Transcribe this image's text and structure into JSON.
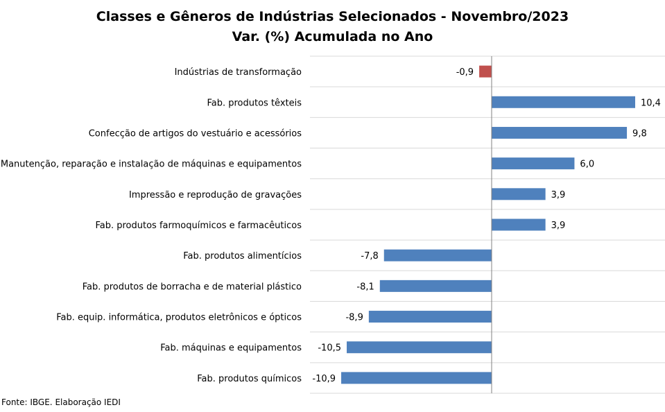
{
  "chart_data": {
    "type": "bar",
    "orientation": "horizontal",
    "title": "Classes e Gêneros de Indústrias Selecionados - Novembro/2023",
    "subtitle": "Var. (%) Acumulada no Ano",
    "categories": [
      "Indústrias de transformação",
      "Fab. produtos têxteis",
      "Confecção de artigos do vestuário e acessórios",
      "Manutenção, reparação e instalação de máquinas e equipamentos",
      "Impressão e reprodução de gravações",
      "Fab. produtos farmoquímicos e farmacêuticos",
      "Fab. produtos alimentícios",
      "Fab. produtos de borracha e de material plástico",
      "Fab. equip. informática, produtos eletrônicos e ópticos",
      "Fab. máquinas e equipamentos",
      "Fab. produtos químicos"
    ],
    "values": [
      -0.9,
      10.4,
      9.8,
      6.0,
      3.9,
      3.9,
      -7.8,
      -8.1,
      -8.9,
      -10.5,
      -10.9
    ],
    "value_labels": [
      "-0,9",
      "10,4",
      "9,8",
      "6,0",
      "3,9",
      "3,9",
      "-7,8",
      "-8,1",
      "-8,9",
      "-10,5",
      "-10,9"
    ],
    "highlight_index": 0,
    "colors": {
      "bar": "#4f81bd",
      "highlight": "#c0504d",
      "gridline": "#d9d9d9",
      "axis": "#808080"
    },
    "xlim": [
      -13,
      12.5
    ],
    "grid": true
  },
  "footer": "Fonte: IBGE. Elaboração IEDI"
}
